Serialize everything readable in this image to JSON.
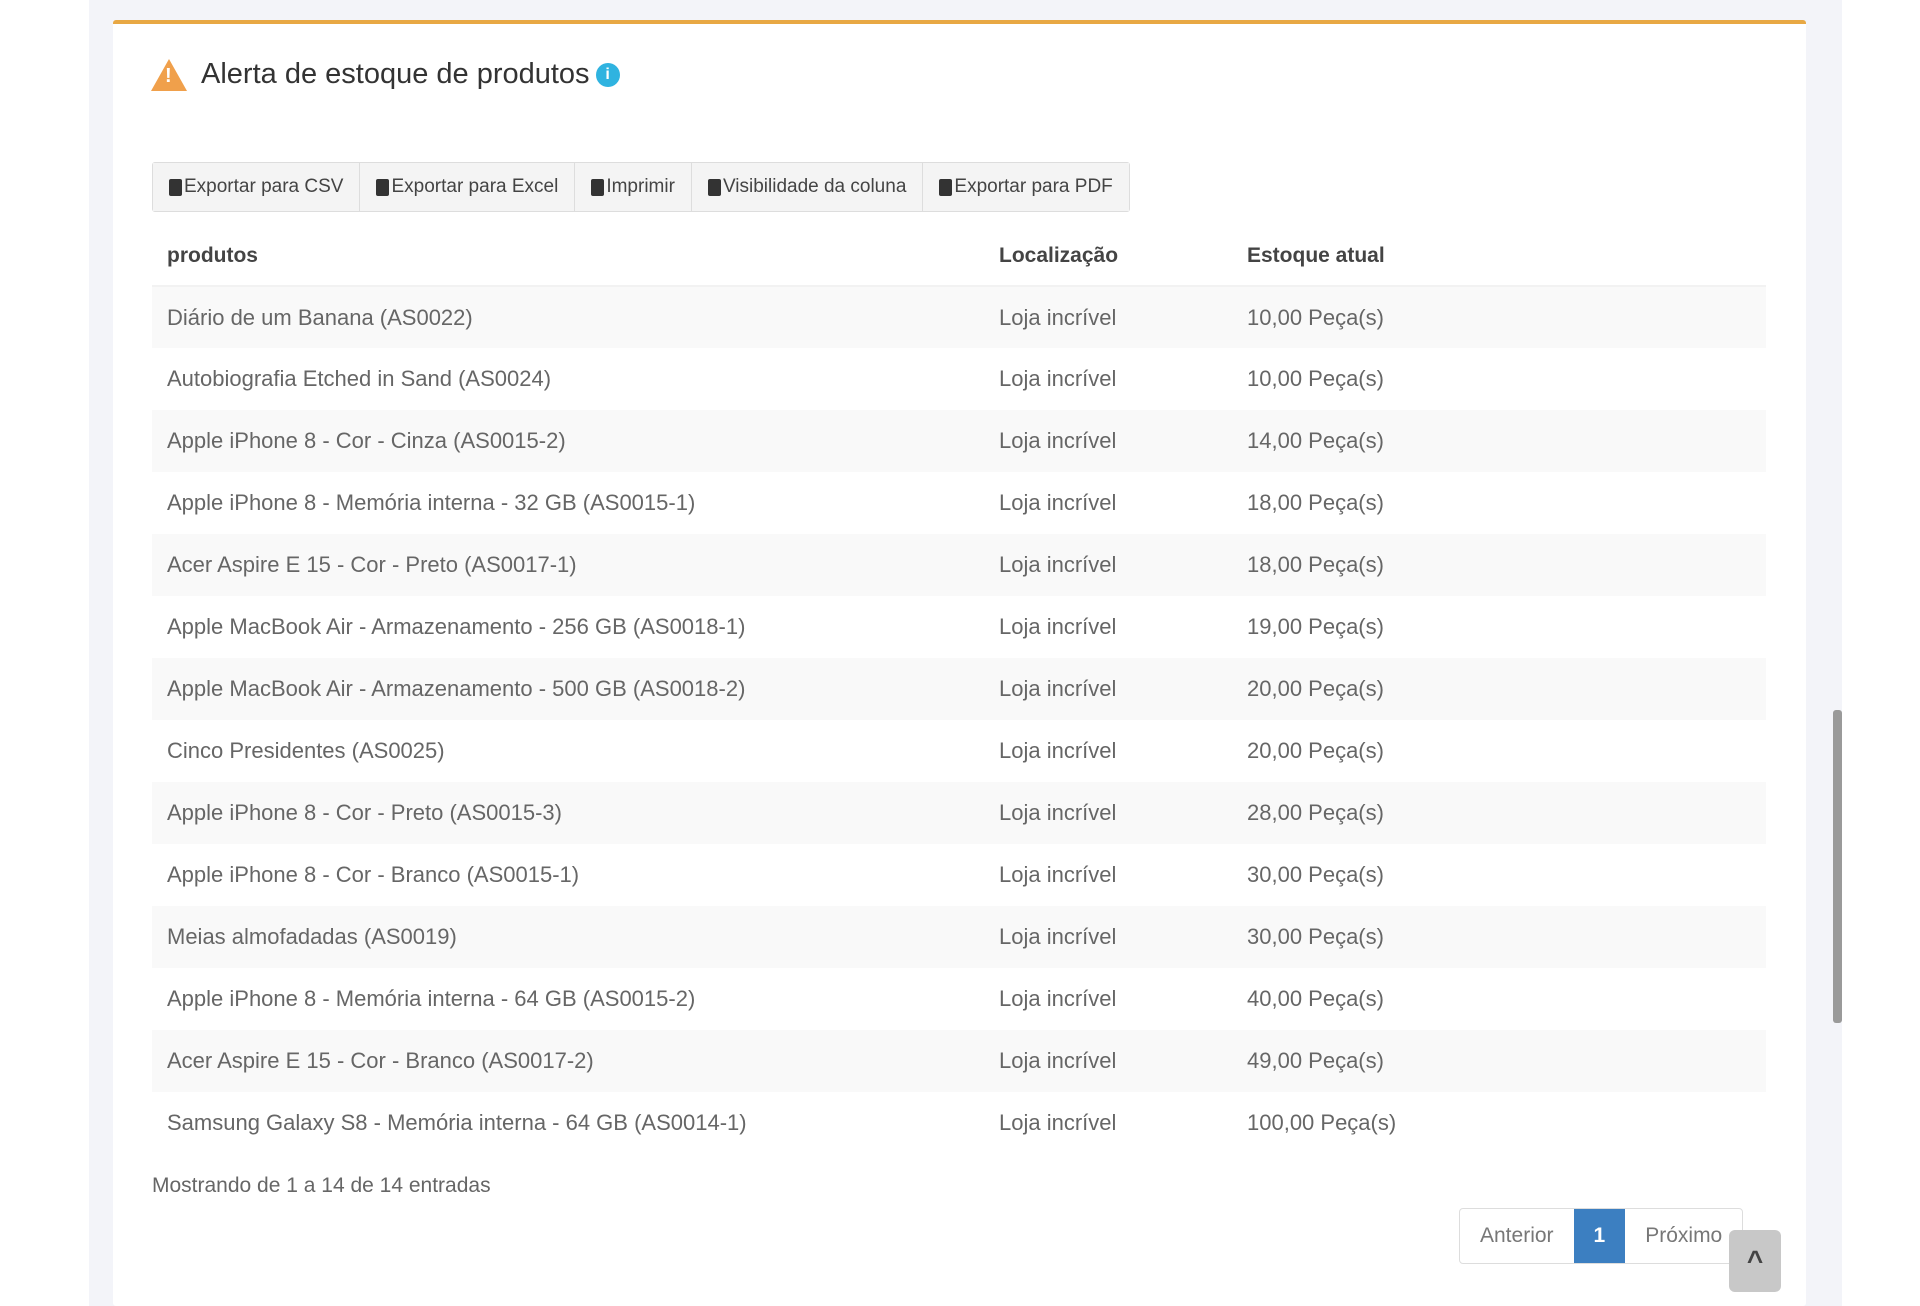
{
  "title": "Alerta de estoque de produtos",
  "toolbar": [
    {
      "label": "Exportar para CSV",
      "icon": "file-csv-icon"
    },
    {
      "label": "Exportar para Excel",
      "icon": "file-excel-icon"
    },
    {
      "label": "Imprimir",
      "icon": "print-icon"
    },
    {
      "label": "Visibilidade da coluna",
      "icon": "columns-icon"
    },
    {
      "label": "Exportar para PDF",
      "icon": "file-pdf-icon"
    }
  ],
  "table": {
    "headers": [
      "produtos",
      "Localização",
      "Estoque atual"
    ],
    "rows": [
      [
        "Diário de um Banana (AS0022)",
        "Loja incrível",
        "10,00 Peça(s)"
      ],
      [
        "Autobiografia Etched in Sand (AS0024)",
        "Loja incrível",
        "10,00 Peça(s)"
      ],
      [
        "Apple iPhone 8 - Cor - Cinza (AS0015-2)",
        "Loja incrível",
        "14,00 Peça(s)"
      ],
      [
        "Apple iPhone 8 - Memória interna - 32 GB (AS0015-1)",
        "Loja incrível",
        "18,00 Peça(s)"
      ],
      [
        "Acer Aspire E 15 - Cor - Preto (AS0017-1)",
        "Loja incrível",
        "18,00 Peça(s)"
      ],
      [
        "Apple MacBook Air - Armazenamento - 256 GB (AS0018-1)",
        "Loja incrível",
        "19,00 Peça(s)"
      ],
      [
        "Apple MacBook Air - Armazenamento - 500 GB (AS0018-2)",
        "Loja incrível",
        "20,00 Peça(s)"
      ],
      [
        "Cinco Presidentes (AS0025)",
        "Loja incrível",
        "20,00 Peça(s)"
      ],
      [
        "Apple iPhone 8 - Cor - Preto (AS0015-3)",
        "Loja incrível",
        "28,00 Peça(s)"
      ],
      [
        "Apple iPhone 8 - Cor - Branco (AS0015-1)",
        "Loja incrível",
        "30,00 Peça(s)"
      ],
      [
        "Meias almofadadas (AS0019)",
        "Loja incrível",
        "30,00 Peça(s)"
      ],
      [
        "Apple iPhone 8 - Memória interna - 64 GB (AS0015-2)",
        "Loja incrível",
        "40,00 Peça(s)"
      ],
      [
        "Acer Aspire E 15 - Cor - Branco (AS0017-2)",
        "Loja incrível",
        "49,00 Peça(s)"
      ],
      [
        "Samsung Galaxy S8 - Memória interna - 64 GB (AS0014-1)",
        "Loja incrível",
        "100,00 Peça(s)"
      ]
    ]
  },
  "footer": "Mostrando de 1 a 14 de 14 entradas",
  "pagination": {
    "prev": "Anterior",
    "current": "1",
    "next": "Próximo"
  },
  "colors": {
    "accent": "#e8a844",
    "primary": "#3c7fc1",
    "info": "#2fb3e0"
  }
}
